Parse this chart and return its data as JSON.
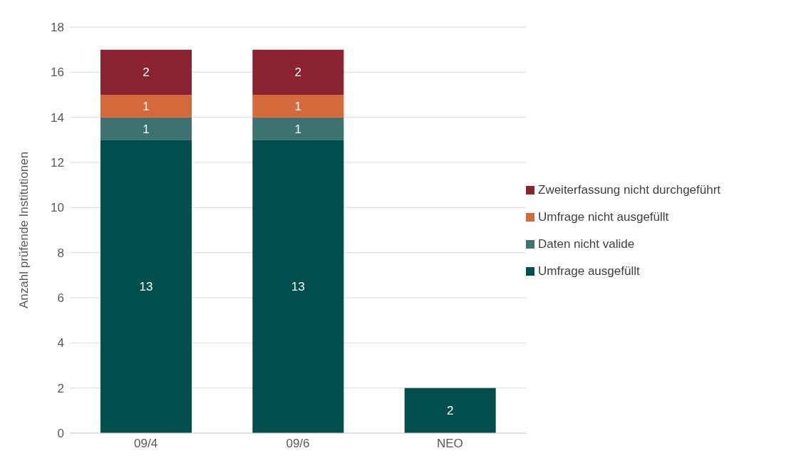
{
  "chart_data": {
    "type": "bar",
    "stacked": true,
    "ylabel": "Anzahl prüfende Institutionen",
    "categories": [
      "09/4",
      "09/6",
      "NEO"
    ],
    "series": [
      {
        "name": "Umfrage ausgefüllt",
        "color": "#004f4e",
        "values": [
          13,
          13,
          2
        ]
      },
      {
        "name": "Daten nicht valide",
        "color": "#3d7370",
        "values": [
          1,
          1,
          null
        ]
      },
      {
        "name": "Umfrage nicht ausgefüllt",
        "color": "#d46a3c",
        "values": [
          1,
          1,
          null
        ]
      },
      {
        "name": "Zweiterfassung nicht durchgeführt",
        "color": "#8b2332",
        "values": [
          2,
          2,
          null
        ]
      }
    ],
    "ylim": [
      0,
      18
    ],
    "yticks": [
      0,
      2,
      4,
      6,
      8,
      10,
      12,
      14,
      16,
      18
    ],
    "grid": "y",
    "legend": "right",
    "data_labels": true
  }
}
